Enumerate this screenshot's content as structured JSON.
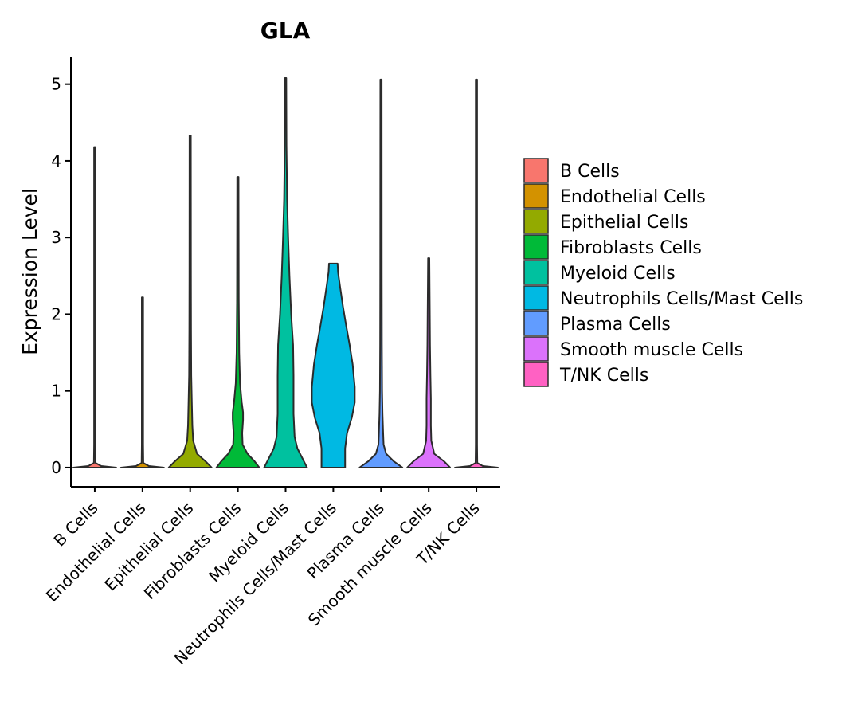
{
  "chart_data": {
    "type": "violin",
    "title": "GLA",
    "xlabel": "",
    "ylabel": "Expression Level",
    "ylim": [
      -0.25,
      5.35
    ],
    "yticks": [
      0,
      1,
      2,
      3,
      4,
      5
    ],
    "grid": false,
    "legend_position": "right",
    "categories": [
      "B Cells",
      "Endothelial Cells",
      "Epithelial Cells",
      "Fibroblasts Cells",
      "Myeloid Cells",
      "Neutrophils Cells/Mast Cells",
      "Plasma Cells",
      "Smooth muscle Cells",
      "T/NK Cells"
    ],
    "series": [
      {
        "name": "B Cells",
        "color": "#F8766D",
        "min": 0,
        "max": 4.18,
        "density": [
          [
            0,
            1.0
          ],
          [
            0.02,
            0.3
          ],
          [
            0.06,
            0.04
          ],
          [
            0.3,
            0.03
          ],
          [
            4.18,
            0.03
          ]
        ]
      },
      {
        "name": "Endothelial Cells",
        "color": "#D39200",
        "min": 0,
        "max": 2.22,
        "density": [
          [
            0,
            1.0
          ],
          [
            0.02,
            0.3
          ],
          [
            0.06,
            0.04
          ],
          [
            0.3,
            0.03
          ],
          [
            2.22,
            0.03
          ]
        ]
      },
      {
        "name": "Epithelial Cells",
        "color": "#93AA00",
        "min": 0,
        "max": 4.33,
        "density": [
          [
            0,
            1.0
          ],
          [
            0.08,
            0.72
          ],
          [
            0.18,
            0.32
          ],
          [
            0.35,
            0.14
          ],
          [
            0.55,
            0.1
          ],
          [
            0.8,
            0.08
          ],
          [
            1.2,
            0.05
          ],
          [
            1.8,
            0.04
          ],
          [
            2.5,
            0.035
          ],
          [
            4.33,
            0.03
          ]
        ]
      },
      {
        "name": "Fibroblasts Cells",
        "color": "#00BA38",
        "min": 0,
        "max": 3.79,
        "density": [
          [
            0,
            1.0
          ],
          [
            0.08,
            0.78
          ],
          [
            0.18,
            0.45
          ],
          [
            0.3,
            0.22
          ],
          [
            0.45,
            0.2
          ],
          [
            0.62,
            0.24
          ],
          [
            0.72,
            0.24
          ],
          [
            0.85,
            0.18
          ],
          [
            1.1,
            0.1
          ],
          [
            1.5,
            0.06
          ],
          [
            2.2,
            0.04
          ],
          [
            3.79,
            0.03
          ]
        ]
      },
      {
        "name": "Myeloid Cells",
        "color": "#00C19F",
        "min": 0,
        "max": 5.08,
        "density": [
          [
            0,
            1.0
          ],
          [
            0.1,
            0.82
          ],
          [
            0.25,
            0.55
          ],
          [
            0.4,
            0.42
          ],
          [
            0.7,
            0.37
          ],
          [
            1.2,
            0.37
          ],
          [
            1.6,
            0.35
          ],
          [
            2.0,
            0.26
          ],
          [
            2.5,
            0.18
          ],
          [
            3.0,
            0.12
          ],
          [
            3.5,
            0.07
          ],
          [
            4.2,
            0.04
          ],
          [
            5.08,
            0.03
          ]
        ]
      },
      {
        "name": "Neutrophils Cells/Mast Cells",
        "color": "#00B9E3",
        "min": 0,
        "max": 2.66,
        "density": [
          [
            0,
            0.55
          ],
          [
            0.25,
            0.55
          ],
          [
            0.45,
            0.64
          ],
          [
            0.65,
            0.86
          ],
          [
            0.85,
            1.0
          ],
          [
            1.05,
            1.0
          ],
          [
            1.35,
            0.9
          ],
          [
            1.6,
            0.76
          ],
          [
            1.85,
            0.6
          ],
          [
            2.1,
            0.45
          ],
          [
            2.35,
            0.32
          ],
          [
            2.55,
            0.22
          ],
          [
            2.66,
            0.2
          ]
        ]
      },
      {
        "name": "Plasma Cells",
        "color": "#619CFF",
        "min": 0,
        "max": 5.06,
        "density": [
          [
            0,
            1.0
          ],
          [
            0.08,
            0.6
          ],
          [
            0.18,
            0.24
          ],
          [
            0.3,
            0.12
          ],
          [
            0.45,
            0.1
          ],
          [
            0.7,
            0.07
          ],
          [
            1.0,
            0.05
          ],
          [
            1.6,
            0.04
          ],
          [
            2.5,
            0.035
          ],
          [
            5.06,
            0.03
          ]
        ]
      },
      {
        "name": "Smooth muscle Cells",
        "color": "#DB72FB",
        "min": 0,
        "max": 2.73,
        "density": [
          [
            0,
            1.0
          ],
          [
            0.08,
            0.72
          ],
          [
            0.18,
            0.26
          ],
          [
            0.35,
            0.12
          ],
          [
            0.55,
            0.1
          ],
          [
            0.9,
            0.1
          ],
          [
            1.2,
            0.08
          ],
          [
            1.6,
            0.06
          ],
          [
            2.0,
            0.05
          ],
          [
            2.73,
            0.03
          ]
        ]
      },
      {
        "name": "T/NK Cells",
        "color": "#FF61C3",
        "min": 0,
        "max": 5.06,
        "density": [
          [
            0,
            1.0
          ],
          [
            0.02,
            0.3
          ],
          [
            0.06,
            0.04
          ],
          [
            0.3,
            0.03
          ],
          [
            5.06,
            0.03
          ]
        ]
      }
    ]
  }
}
